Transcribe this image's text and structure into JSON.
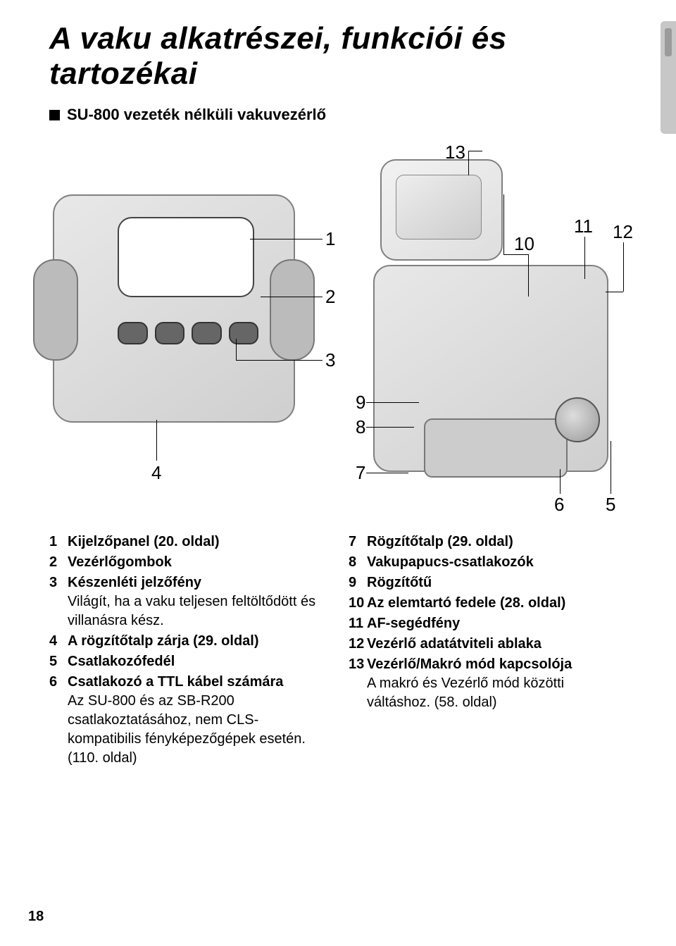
{
  "title": "A vaku alkatrészei, funkciói és tartozékai",
  "subtitle": "SU-800 vezeték nélküli vakuvezérlő",
  "callouts": {
    "n1": "1",
    "n2": "2",
    "n3": "3",
    "n4": "4",
    "n5": "5",
    "n6": "6",
    "n7": "7",
    "n8": "8",
    "n9": "9",
    "n10": "10",
    "n11": "11",
    "n12": "12",
    "n13": "13"
  },
  "leftList": [
    {
      "num": "1",
      "label": "Kijelzőpanel (20. oldal)",
      "desc": ""
    },
    {
      "num": "2",
      "label": "Vezérlőgombok",
      "desc": ""
    },
    {
      "num": "3",
      "label": "Készenléti jelzőfény",
      "desc": "Világít, ha a vaku teljesen feltöltődött és villanásra kész."
    },
    {
      "num": "4",
      "label": "A rögzítőtalp zárja (29. oldal)",
      "desc": ""
    },
    {
      "num": "5",
      "label": "Csatlakozófedél",
      "desc": ""
    },
    {
      "num": "6",
      "label": "Csatlakozó a TTL kábel számára",
      "desc": "Az SU-800 és az SB-R200 csatlakoztatásához, nem CLS-kompatibilis fényképezőgépek esetén. (110. oldal)"
    }
  ],
  "rightList": [
    {
      "num": "7",
      "label": "Rögzítőtalp (29. oldal)",
      "desc": ""
    },
    {
      "num": "8",
      "label": "Vakupapucs-csatlakozók",
      "desc": ""
    },
    {
      "num": "9",
      "label": "Rögzítőtű",
      "desc": ""
    },
    {
      "num": "10",
      "label": "Az elemtartó fedele (28. oldal)",
      "desc": ""
    },
    {
      "num": "11",
      "label": "AF-segédfény",
      "desc": ""
    },
    {
      "num": "12",
      "label": "Vezérlő adatátviteli ablaka",
      "desc": ""
    },
    {
      "num": "13",
      "label": "Vezérlő/Makró mód kapcsolója",
      "desc": "A makró és Vezérlő mód közötti váltáshoz. (58. oldal)"
    }
  ],
  "pageNumber": "18",
  "style": {
    "background": "#ffffff",
    "text_color": "#000000",
    "title_fontsize": 44,
    "body_fontsize": 20,
    "callout_fontsize": 26,
    "bullet_color": "#000000",
    "device_fill": "#d6d6d6",
    "device_stroke": "#808080",
    "greytab_bg": "#c7c7c7"
  }
}
